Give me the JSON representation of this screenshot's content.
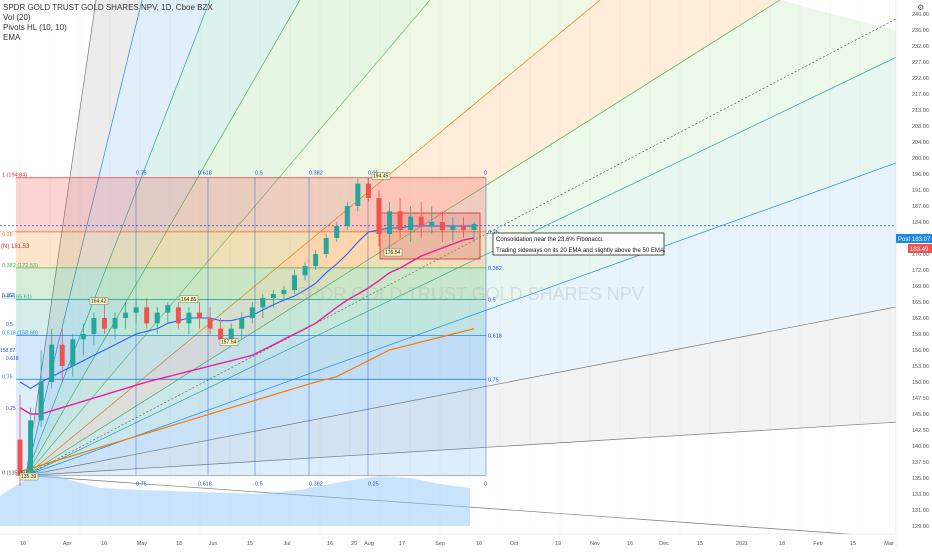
{
  "legend": {
    "symbol_line": "SPDR GOLD TRUST GOLD SHARES NPV, 1D, Cboe BZX",
    "vol": "Vol (20)",
    "pivots": "Pivots HL (10, 10)",
    "ema": "EMA"
  },
  "watermark": "SPDR GOLD TRUST GOLD SHARES NPV",
  "toolbar_symbol": "⚙",
  "price_badges": {
    "post_label": "Post",
    "post_value": "183.07",
    "close_value": "183.49",
    "left_hline_label": "(N) 181.53"
  },
  "annotation": {
    "line1": "Consolidation near the 23.6% Fibonacci.",
    "line2": "Trading sideways on its 20 EMA and slightly above the 50 EMA."
  },
  "fib_top_labels": [
    "0.75",
    "0.618",
    "0.5",
    "0.382",
    "0.25",
    "0"
  ],
  "fib_bottom_labels": [
    "0.75",
    "0.618",
    "0.5",
    "0.382",
    "0.25",
    "0"
  ],
  "fib_right_labels": [
    "0.25",
    "0.382",
    "0.5",
    "0.618",
    "0.75"
  ],
  "fib_left_labels": [
    "1 (194.84)",
    "0.25",
    "0.382 (172.53)",
    "0.5 (165.61)",
    "0.618 (158.69)",
    "0.75",
    "0 (135.39)"
  ],
  "pivot_labels": [
    "194.45",
    "176.54",
    "164.42",
    "164.85",
    "157.54",
    "135.39"
  ],
  "left_small_labels": [
    "158.87",
    "0.618",
    "0.5",
    "0.25",
    "0.382"
  ],
  "colors": {
    "up": "#26a69a",
    "down": "#ef5350",
    "ema20": "#2962ff",
    "ema50": "#e91e9b",
    "ema200": "#f57c00",
    "volume": "#90caf9",
    "hline": "#1e4fd8"
  },
  "chart_data": {
    "type": "candlestick",
    "y_axis": {
      "min": 130,
      "max": 240,
      "tick_labels": [
        "240.00",
        "236.00",
        "232.00",
        "227.00",
        "222.00",
        "217.00",
        "213.00",
        "208.00",
        "204.00",
        "200.00",
        "196.00",
        "191.00",
        "187.00",
        "184.00",
        "180.00",
        "176.00",
        "172.00",
        "169.00",
        "165.00",
        "162.00",
        "159.00",
        "156.00",
        "153.00",
        "150.00",
        "147.50",
        "145.00",
        "142.50",
        "140.00",
        "137.50",
        "135.00",
        "133.00",
        "131.00",
        "129.00"
      ]
    },
    "x_axis": {
      "tick_labels": [
        "16",
        "Apr",
        "16",
        "May",
        "18",
        "Jun",
        "15",
        "Jul",
        "16",
        "20",
        "Aug",
        "17",
        "Sep",
        "16",
        "Oct",
        "19",
        "Nov",
        "16",
        "Dec",
        "15",
        "2021",
        "18",
        "Feb",
        "15",
        "Mar"
      ]
    },
    "last_price": 183.49,
    "post_price": 183.07,
    "fib_anchor_high": 194.84,
    "fib_anchor_low": 135.39,
    "fib_levels": [
      {
        "ratio": 0.25,
        "price": 181.53
      },
      {
        "ratio": 0.382,
        "price": 172.53
      },
      {
        "ratio": 0.5,
        "price": 165.61
      },
      {
        "ratio": 0.618,
        "price": 158.69
      },
      {
        "ratio": 0.75,
        "price": 150.5
      }
    ],
    "ohlc": [
      [
        141,
        148,
        134,
        135.4
      ],
      [
        136,
        146,
        135,
        144
      ],
      [
        144,
        156,
        143,
        150
      ],
      [
        150,
        160,
        149,
        157
      ],
      [
        157,
        160,
        150,
        153
      ],
      [
        153,
        159,
        151,
        158
      ],
      [
        158,
        161,
        155,
        159
      ],
      [
        159,
        163,
        157,
        162
      ],
      [
        162,
        165,
        159,
        160
      ],
      [
        160,
        163,
        158,
        162
      ],
      [
        162,
        165,
        160,
        163
      ],
      [
        163,
        166,
        161,
        164
      ],
      [
        164,
        166,
        160,
        161
      ],
      [
        161,
        164,
        159,
        163
      ],
      [
        163,
        165,
        161,
        164.4
      ],
      [
        164,
        165,
        160,
        161
      ],
      [
        161,
        164,
        159,
        163
      ],
      [
        163,
        165,
        160,
        162
      ],
      [
        162,
        164,
        159,
        160
      ],
      [
        160,
        162,
        157.5,
        158
      ],
      [
        158,
        161,
        157,
        160
      ],
      [
        160,
        163,
        158,
        162
      ],
      [
        162,
        165,
        161,
        164
      ],
      [
        164,
        167,
        162,
        166
      ],
      [
        166,
        168,
        164,
        167
      ],
      [
        167,
        169,
        165,
        168
      ],
      [
        168,
        172,
        167,
        171
      ],
      [
        171,
        174,
        170,
        173
      ],
      [
        173,
        177,
        172,
        176
      ],
      [
        176,
        181,
        175,
        180
      ],
      [
        180,
        184,
        179,
        183
      ],
      [
        183,
        188,
        182,
        187
      ],
      [
        187,
        194.5,
        186,
        193
      ],
      [
        193,
        195,
        188,
        189
      ],
      [
        189,
        191,
        178,
        181
      ],
      [
        181,
        188,
        177,
        186
      ],
      [
        186,
        189,
        180,
        182
      ],
      [
        182,
        187,
        179,
        185
      ],
      [
        185,
        188,
        180,
        183
      ],
      [
        183,
        187,
        181,
        184
      ],
      [
        184,
        186,
        179,
        182
      ],
      [
        182,
        185,
        179,
        183
      ],
      [
        183,
        185,
        180,
        182
      ],
      [
        182,
        184,
        179,
        183.5
      ]
    ],
    "ema20": [
      150,
      149,
      150,
      151,
      152,
      153,
      154,
      155,
      156,
      157,
      158,
      159,
      159.5,
      160,
      161,
      161.5,
      162,
      162,
      162,
      161.5,
      161.5,
      162,
      162.5,
      163.5,
      164.5,
      165.5,
      166.5,
      168,
      169.5,
      171.5,
      173.5,
      176,
      179,
      181.5,
      182,
      182.5,
      182.5,
      183,
      183,
      183,
      183,
      183,
      183,
      183
    ],
    "ema50": [
      146,
      145,
      145,
      145.5,
      146,
      146.5,
      147,
      147.5,
      148,
      148.5,
      149,
      149.5,
      150,
      150.5,
      151,
      151.5,
      152,
      152.5,
      153,
      153.5,
      154,
      154.5,
      155,
      156,
      157,
      158,
      159,
      160,
      161,
      162.5,
      164,
      165.5,
      167,
      168.5,
      170,
      171.5,
      172.5,
      174,
      175.5,
      176.5,
      177.5,
      178.5,
      179.5,
      180
    ],
    "ema200": [
      136,
      136.5,
      137,
      137.5,
      138,
      138.5,
      139,
      139.5,
      140,
      140.5,
      141,
      141.5,
      142,
      142.5,
      143,
      143.5,
      144,
      144.5,
      145,
      145.5,
      146,
      146.5,
      147,
      147.5,
      148,
      148.5,
      149,
      149.5,
      150,
      150.5,
      151,
      152,
      153,
      154,
      155,
      156,
      156.5,
      157,
      157.5,
      158,
      158.5,
      159,
      159.5,
      160
    ]
  }
}
